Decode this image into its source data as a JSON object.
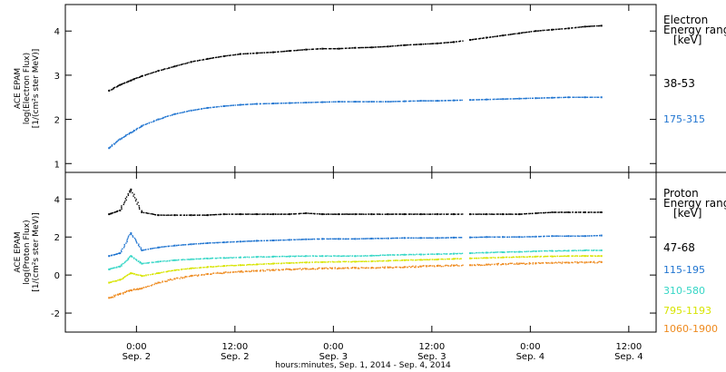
{
  "chart_data": [
    {
      "type": "scatter",
      "ylabel_lines": [
        "ACE EPAM",
        "log(Electron Flux)",
        "[1/(cm²s ster MeV)]"
      ],
      "ylim": [
        0.8,
        4.6
      ],
      "yticks": [
        1,
        2,
        3,
        4
      ],
      "legend_title": [
        "Electron",
        "Energy range",
        "[keV]"
      ],
      "series": [
        {
          "name": "38-53",
          "color": "#000000",
          "x": [
            0,
            2,
            4,
            6,
            9,
            12,
            15,
            18,
            21,
            24,
            27,
            30,
            33,
            36,
            39,
            42,
            45,
            48,
            51,
            54,
            57,
            60,
            63,
            66,
            69,
            72,
            75,
            78,
            81,
            84,
            87,
            90
          ],
          "y": [
            2.65,
            2.78,
            2.88,
            2.98,
            3.1,
            3.2,
            3.3,
            3.37,
            3.43,
            3.48,
            3.5,
            3.52,
            3.55,
            3.58,
            3.6,
            3.6,
            3.62,
            3.63,
            3.65,
            3.68,
            3.7,
            3.72,
            3.75,
            3.8,
            3.85,
            3.9,
            3.95,
            4.0,
            4.03,
            4.06,
            4.1,
            4.12
          ]
        },
        {
          "name": "175-315",
          "color": "#1f74d0",
          "x": [
            0,
            2,
            4,
            6,
            9,
            12,
            15,
            18,
            21,
            24,
            27,
            30,
            33,
            36,
            39,
            42,
            45,
            48,
            51,
            54,
            57,
            60,
            63,
            66,
            69,
            72,
            75,
            78,
            81,
            84,
            87,
            90
          ],
          "y": [
            1.35,
            1.55,
            1.7,
            1.85,
            2.0,
            2.12,
            2.2,
            2.26,
            2.3,
            2.33,
            2.35,
            2.36,
            2.37,
            2.38,
            2.39,
            2.4,
            2.4,
            2.4,
            2.4,
            2.41,
            2.42,
            2.42,
            2.43,
            2.44,
            2.45,
            2.46,
            2.47,
            2.48,
            2.49,
            2.5,
            2.5,
            2.5
          ]
        }
      ]
    },
    {
      "type": "scatter",
      "ylabel_lines": [
        "ACE EPAM",
        "log(Proton Flux)",
        "[1/(cm²s ster MeV)]"
      ],
      "ylim": [
        -3.0,
        5.4
      ],
      "yticks": [
        -2,
        0,
        2,
        4
      ],
      "legend_title": [
        "Proton",
        "Energy range",
        "[keV]"
      ],
      "series": [
        {
          "name": "47-68",
          "color": "#000000",
          "x": [
            0,
            2,
            4,
            6,
            9,
            12,
            15,
            18,
            21,
            24,
            27,
            30,
            33,
            36,
            39,
            42,
            45,
            48,
            51,
            54,
            57,
            60,
            63,
            66,
            69,
            72,
            75,
            78,
            81,
            84,
            87,
            90
          ],
          "y": [
            3.2,
            3.4,
            4.5,
            3.3,
            3.15,
            3.15,
            3.15,
            3.15,
            3.2,
            3.2,
            3.2,
            3.2,
            3.2,
            3.25,
            3.2,
            3.2,
            3.2,
            3.2,
            3.2,
            3.2,
            3.2,
            3.2,
            3.2,
            3.2,
            3.2,
            3.2,
            3.2,
            3.25,
            3.3,
            3.3,
            3.3,
            3.3
          ]
        },
        {
          "name": "115-195",
          "color": "#1f74d0",
          "x": [
            0,
            2,
            4,
            6,
            9,
            12,
            15,
            18,
            21,
            24,
            27,
            30,
            33,
            36,
            39,
            42,
            45,
            48,
            51,
            54,
            57,
            60,
            63,
            66,
            69,
            72,
            75,
            78,
            81,
            84,
            87,
            90
          ],
          "y": [
            1.0,
            1.15,
            2.2,
            1.3,
            1.45,
            1.55,
            1.62,
            1.68,
            1.72,
            1.76,
            1.8,
            1.82,
            1.85,
            1.88,
            1.9,
            1.9,
            1.9,
            1.92,
            1.93,
            1.95,
            1.95,
            1.95,
            1.97,
            1.98,
            2.0,
            2.0,
            2.0,
            2.02,
            2.05,
            2.05,
            2.05,
            2.08
          ]
        },
        {
          "name": "310-580",
          "color": "#35d6c6",
          "x": [
            0,
            2,
            4,
            6,
            9,
            12,
            15,
            18,
            21,
            24,
            27,
            30,
            33,
            36,
            39,
            42,
            45,
            48,
            51,
            54,
            57,
            60,
            63,
            66,
            69,
            72,
            75,
            78,
            81,
            84,
            87,
            90
          ],
          "y": [
            0.3,
            0.45,
            1.0,
            0.6,
            0.7,
            0.78,
            0.83,
            0.87,
            0.9,
            0.93,
            0.95,
            0.97,
            0.98,
            1.0,
            1.0,
            1.0,
            1.0,
            1.02,
            1.05,
            1.07,
            1.08,
            1.1,
            1.12,
            1.15,
            1.18,
            1.2,
            1.22,
            1.25,
            1.27,
            1.28,
            1.3,
            1.3
          ]
        },
        {
          "name": "795-1193",
          "color": "#d7e400",
          "x": [
            0,
            2,
            4,
            6,
            9,
            12,
            15,
            18,
            21,
            24,
            27,
            30,
            33,
            36,
            39,
            42,
            45,
            48,
            51,
            54,
            57,
            60,
            63,
            66,
            69,
            72,
            75,
            78,
            81,
            84,
            87,
            90
          ],
          "y": [
            -0.4,
            -0.25,
            0.1,
            -0.05,
            0.1,
            0.25,
            0.35,
            0.42,
            0.48,
            0.52,
            0.56,
            0.6,
            0.63,
            0.66,
            0.68,
            0.7,
            0.7,
            0.72,
            0.75,
            0.78,
            0.8,
            0.82,
            0.85,
            0.88,
            0.9,
            0.93,
            0.95,
            0.97,
            0.98,
            1.0,
            1.0,
            1.0
          ]
        },
        {
          "name": "1060-1900",
          "color": "#ee8a1e",
          "x": [
            0,
            2,
            4,
            6,
            9,
            12,
            15,
            18,
            21,
            24,
            27,
            30,
            33,
            36,
            39,
            42,
            45,
            48,
            51,
            54,
            57,
            60,
            63,
            66,
            69,
            72,
            75,
            78,
            81,
            84,
            87,
            90
          ],
          "y": [
            -1.2,
            -1.0,
            -0.8,
            -0.7,
            -0.4,
            -0.2,
            -0.05,
            0.05,
            0.12,
            0.18,
            0.22,
            0.26,
            0.3,
            0.32,
            0.34,
            0.36,
            0.37,
            0.38,
            0.4,
            0.42,
            0.45,
            0.48,
            0.5,
            0.52,
            0.55,
            0.58,
            0.6,
            0.62,
            0.63,
            0.65,
            0.66,
            0.68
          ]
        }
      ]
    }
  ],
  "xaxis": {
    "xlim": [
      -8,
      100
    ],
    "xticks": [
      {
        "x": 5,
        "time": "0:00",
        "day": "Sep. 2"
      },
      {
        "x": 23,
        "time": "12:00",
        "day": "Sep. 2"
      },
      {
        "x": 41,
        "time": "0:00",
        "day": "Sep. 3"
      },
      {
        "x": 59,
        "time": "12:00",
        "day": "Sep. 3"
      },
      {
        "x": 77,
        "time": "0:00",
        "day": "Sep. 4"
      },
      {
        "x": 95,
        "time": "12:00",
        "day": "Sep. 4"
      }
    ],
    "xlabel": "hours:minutes, Sep.  1, 2014 - Sep.  4, 2014"
  }
}
